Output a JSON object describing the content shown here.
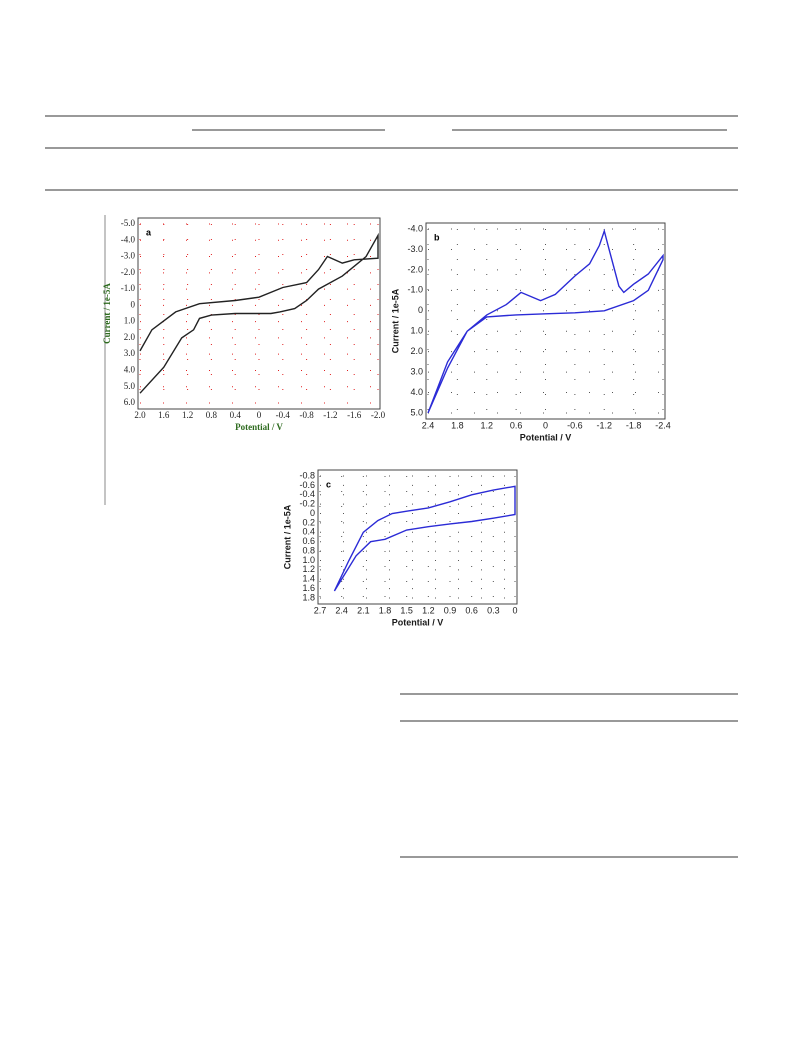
{
  "chart_data": [
    {
      "type": "line",
      "title": "a",
      "xlabel": "Potential / V",
      "ylabel": "Current / 1e-5A",
      "label_color": "#2e6b1f",
      "grid": true,
      "grid_color": "#e02020",
      "xlim": [
        2.0,
        -2.0
      ],
      "xticks": [
        {
          "value": 2.0,
          "label": "2.0"
        },
        1.6,
        1.2,
        0.8,
        0.4,
        0,
        -0.4,
        -0.8,
        -1.2,
        -1.6,
        {
          "value": -2.0,
          "label": "-2.0"
        }
      ],
      "ylim": [
        6.0,
        -5.0
      ],
      "yticks": [
        {
          "value": -5,
          "label": "-5.0"
        },
        {
          "value": -4,
          "label": "-4.0"
        },
        {
          "value": -3,
          "label": "-3.0"
        },
        {
          "value": -2,
          "label": "-2.0"
        },
        {
          "value": -1,
          "label": "-1.0"
        },
        0,
        {
          "value": 1,
          "label": "1.0"
        },
        {
          "value": 2,
          "label": "2.0"
        },
        {
          "value": 3,
          "label": "3.0"
        },
        {
          "value": 4,
          "label": "4.0"
        },
        {
          "value": 5,
          "label": "5.0"
        },
        {
          "value": 6,
          "label": "6.0"
        }
      ],
      "series": [
        {
          "color": "#222222",
          "x": [
            2.0,
            1.6,
            1.3,
            1.1,
            1.0,
            0.8,
            0.4,
            0.0,
            -0.2,
            -0.35,
            -0.6,
            -0.8,
            -1.0,
            -1.4,
            -1.8,
            -2.0,
            -2.0,
            -1.6,
            -1.4,
            -1.15,
            -1.0,
            -0.8,
            -0.4,
            0.0,
            0.4,
            1.0,
            1.4,
            1.8,
            2.0
          ],
          "values": [
            5.4,
            3.8,
            2.0,
            1.5,
            0.8,
            0.6,
            0.5,
            0.5,
            0.5,
            0.4,
            0.2,
            -0.3,
            -1.0,
            -1.8,
            -3.0,
            -4.3,
            -2.9,
            -2.8,
            -2.6,
            -3.0,
            -2.2,
            -1.4,
            -1.1,
            -0.5,
            -0.3,
            -0.1,
            0.4,
            1.5,
            2.8
          ]
        }
      ]
    },
    {
      "type": "line",
      "title": "b",
      "xlabel": "Potential / V",
      "ylabel": "Current / 1e-5A",
      "label_color": "#1a1a1a",
      "grid": true,
      "grid_color": "#555555",
      "xlim": [
        2.4,
        -2.4
      ],
      "xticks": [
        2.4,
        1.8,
        1.2,
        0.6,
        0,
        -0.6,
        -1.2,
        -1.8,
        -2.4
      ],
      "ylim": [
        5.0,
        -4.0
      ],
      "yticks": [
        {
          "value": -4,
          "label": "-4.0"
        },
        {
          "value": -3,
          "label": "-3.0"
        },
        {
          "value": -2,
          "label": "-2.0"
        },
        {
          "value": -1,
          "label": "-1.0"
        },
        0,
        {
          "value": 1,
          "label": "1.0"
        },
        {
          "value": 2,
          "label": "2.0"
        },
        {
          "value": 3,
          "label": "3.0"
        },
        {
          "value": 4,
          "label": "4.0"
        },
        {
          "value": 5,
          "label": "5.0"
        }
      ],
      "series": [
        {
          "color": "#2b2bd6",
          "x": [
            2.4,
            2.0,
            1.6,
            1.2,
            0.8,
            0.5,
            0.3,
            0.1,
            -0.2,
            -0.6,
            -0.9,
            -1.1,
            -1.2,
            -1.3,
            -1.5,
            -1.6,
            -1.8,
            -2.1,
            -2.4,
            -2.4,
            -2.1,
            -1.8,
            -1.2,
            -0.6,
            0.0,
            0.6,
            1.2,
            1.6,
            2.0,
            2.4
          ],
          "values": [
            5.0,
            2.5,
            1.0,
            0.2,
            -0.3,
            -0.9,
            -0.7,
            -0.5,
            -0.8,
            -1.7,
            -2.3,
            -3.2,
            -3.9,
            -3.0,
            -1.2,
            -0.9,
            -1.3,
            -1.8,
            -2.7,
            -2.5,
            -1.0,
            -0.5,
            0.0,
            0.1,
            0.15,
            0.2,
            0.3,
            1.0,
            2.8,
            5.0
          ]
        }
      ]
    },
    {
      "type": "line",
      "title": "c",
      "xlabel": "Potential / V",
      "ylabel": "Current / 1e-5A",
      "label_color": "#1a1a1a",
      "grid": true,
      "grid_color": "#555555",
      "xlim": [
        2.7,
        0
      ],
      "xticks": [
        2.7,
        2.4,
        2.1,
        1.8,
        1.5,
        1.2,
        0.9,
        0.6,
        0.3,
        0
      ],
      "ylim": [
        1.8,
        -0.8
      ],
      "yticks": [
        -0.8,
        -0.6,
        -0.4,
        -0.2,
        0,
        0.2,
        0.4,
        0.6,
        0.8,
        {
          "value": 1,
          "label": "1.0"
        },
        1.2,
        1.4,
        1.6,
        1.8
      ],
      "series": [
        {
          "color": "#2b2bd6",
          "x": [
            2.5,
            2.3,
            2.1,
            1.9,
            1.7,
            1.5,
            1.2,
            0.9,
            0.6,
            0.3,
            0.0,
            0.0,
            0.3,
            0.6,
            0.9,
            1.2,
            1.5,
            1.8,
            2.0,
            2.2,
            2.5
          ],
          "values": [
            1.65,
            1.0,
            0.4,
            0.15,
            0.0,
            -0.05,
            -0.12,
            -0.25,
            -0.4,
            -0.5,
            -0.58,
            0.02,
            0.1,
            0.17,
            0.22,
            0.28,
            0.35,
            0.55,
            0.6,
            0.9,
            1.65
          ]
        }
      ]
    }
  ]
}
